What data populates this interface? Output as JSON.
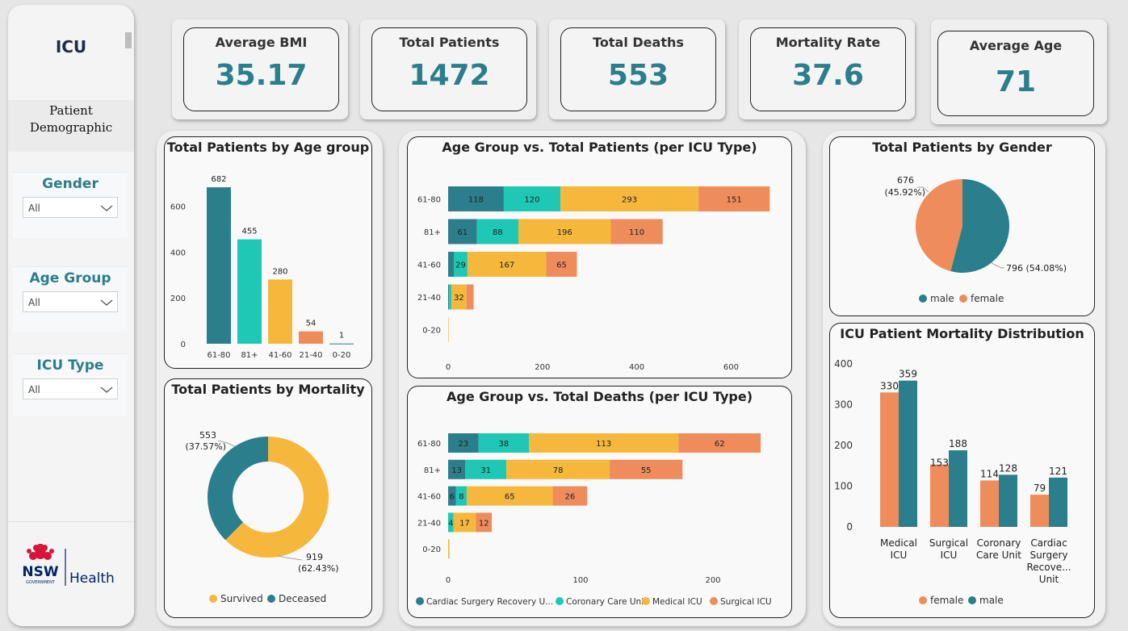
{
  "sidebar": {
    "title": "ICU",
    "subtitle_line1": "Patient",
    "subtitle_line2": "Demographic",
    "slicers": [
      {
        "title": "Gender",
        "value": "All"
      },
      {
        "title": "Age Group",
        "value": "All"
      },
      {
        "title": "ICU Type",
        "value": "All"
      }
    ],
    "logo": {
      "line1": "NSW",
      "line2": "GOVERNMENT",
      "line3": "Health"
    }
  },
  "kpis": [
    {
      "label": "Average BMI",
      "value": "35.17"
    },
    {
      "label": "Total Patients",
      "value": "1472"
    },
    {
      "label": "Total Deaths",
      "value": "553"
    },
    {
      "label": "Mortality Rate",
      "value": "37.6"
    },
    {
      "label": "Average Age",
      "value": "71"
    }
  ],
  "colors": {
    "cardiac": "#2b7e8c",
    "coronary": "#1fc8b4",
    "medical": "#f5b83d",
    "surgical": "#ef8c5b",
    "accent": "#2b7e8c",
    "male": "#2b7e8c",
    "female": "#ef8c5b",
    "survived": "#f5b83d",
    "deceased": "#2b7e8c"
  },
  "chart_data": [
    {
      "id": "age",
      "type": "bar",
      "title": "Total Patients by Age group",
      "categories": [
        "61-80",
        "81+",
        "41-60",
        "21-40",
        "0-20"
      ],
      "values": [
        682,
        455,
        280,
        54,
        1
      ],
      "colors": [
        "#2b7e8c",
        "#1fc8b4",
        "#f5b83d",
        "#ef8c5b",
        "#2b7e8c"
      ],
      "yticks": [
        0,
        200,
        400,
        600
      ],
      "ylim": [
        0,
        700
      ],
      "grid": false
    },
    {
      "id": "mort",
      "type": "pie",
      "title": "Total Patients by Mortality",
      "slices": [
        {
          "name": "Survived",
          "value": 919,
          "label": "919",
          "pct": "(62.43%)"
        },
        {
          "name": "Deceased",
          "value": 553,
          "label": "553",
          "pct": "(37.57%)"
        }
      ],
      "donut": true,
      "legend": "bottom"
    },
    {
      "id": "agepat",
      "type": "bar",
      "orientation": "horizontal",
      "stacked": true,
      "title": "Age Group vs. Total Patients (per ICU Type)",
      "categories": [
        "61-80",
        "81+",
        "41-60",
        "21-40",
        "0-20"
      ],
      "series": [
        {
          "name": "Cardiac Surgery Recovery U...",
          "values": [
            118,
            61,
            12,
            2,
            0
          ],
          "labels": [
            "118",
            "61",
            "",
            "",
            ""
          ]
        },
        {
          "name": "Coronary Care Unit",
          "values": [
            120,
            88,
            29,
            5,
            0
          ],
          "labels": [
            "120",
            "88",
            "29",
            "",
            ""
          ]
        },
        {
          "name": "Medical ICU",
          "values": [
            293,
            196,
            167,
            32,
            1
          ],
          "labels": [
            "293",
            "196",
            "167",
            "32",
            ""
          ]
        },
        {
          "name": "Surgical ICU",
          "values": [
            151,
            110,
            65,
            15,
            0
          ],
          "labels": [
            "151",
            "110",
            "65",
            "",
            ""
          ]
        }
      ],
      "xticks": [
        0,
        200,
        400,
        600
      ],
      "xlim": [
        0,
        700
      ],
      "grid": false
    },
    {
      "id": "agedeath",
      "type": "bar",
      "orientation": "horizontal",
      "stacked": true,
      "title": "Age Group vs. Total Deaths (per ICU Type)",
      "categories": [
        "61-80",
        "81+",
        "41-60",
        "21-40",
        "0-20"
      ],
      "series": [
        {
          "name": "Cardiac Surgery Recovery U...",
          "values": [
            23,
            13,
            6,
            0,
            0
          ],
          "labels": [
            "23",
            "13",
            "6",
            "",
            ""
          ]
        },
        {
          "name": "Coronary Care Unit",
          "values": [
            38,
            31,
            8,
            4,
            0
          ],
          "labels": [
            "38",
            "31",
            "8",
            "4",
            ""
          ]
        },
        {
          "name": "Medical ICU",
          "values": [
            113,
            78,
            65,
            17,
            1
          ],
          "labels": [
            "113",
            "78",
            "65",
            "17",
            ""
          ]
        },
        {
          "name": "Surgical ICU",
          "values": [
            62,
            55,
            26,
            12,
            0
          ],
          "labels": [
            "62",
            "55",
            "26",
            "12",
            ""
          ]
        }
      ],
      "xticks": [
        0,
        100,
        200
      ],
      "xlim": [
        0,
        240
      ],
      "legend": "bottom",
      "grid": false
    },
    {
      "id": "gender",
      "type": "pie",
      "title": "Total Patients by Gender",
      "slices": [
        {
          "name": "male",
          "value": 796,
          "label": "796 (54.08%)"
        },
        {
          "name": "female",
          "value": 676,
          "label": "676",
          "pct": "(45.92%)"
        }
      ],
      "legend": "bottom"
    },
    {
      "id": "icu",
      "type": "bar",
      "title": "ICU Patient Mortality Distribution",
      "categories": [
        [
          "Medical",
          "ICU"
        ],
        [
          "Surgical",
          "ICU"
        ],
        [
          "Coronary",
          "Care Unit"
        ],
        [
          "Cardiac",
          "Surgery",
          "Recove...",
          "Unit"
        ]
      ],
      "series": [
        {
          "name": "female",
          "values": [
            330,
            153,
            114,
            79
          ]
        },
        {
          "name": "male",
          "values": [
            359,
            188,
            128,
            121
          ]
        }
      ],
      "yticks": [
        0,
        100,
        200,
        300,
        400
      ],
      "ylim": [
        0,
        400
      ],
      "legend": "bottom",
      "grid": false
    }
  ]
}
